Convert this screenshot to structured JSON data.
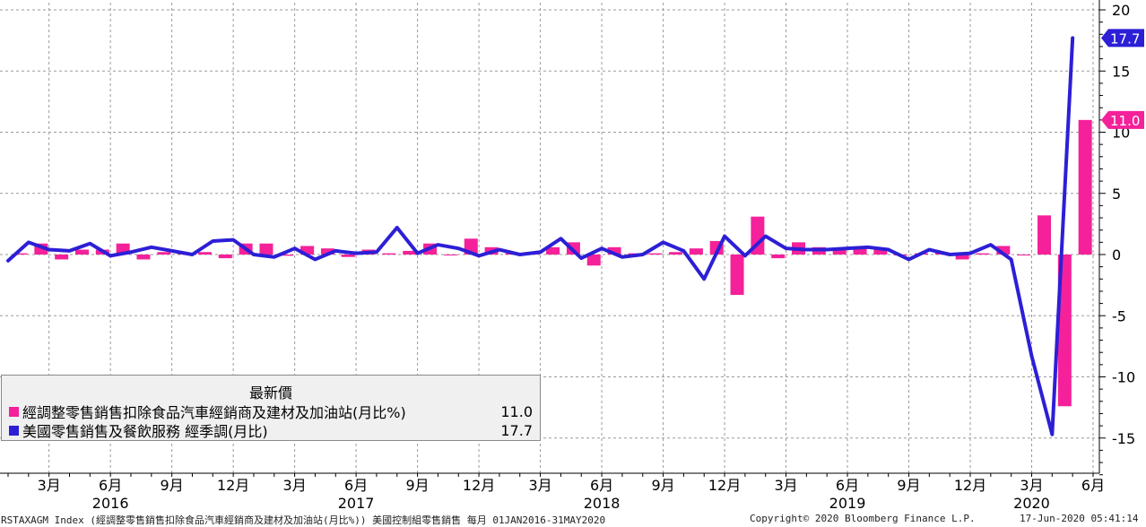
{
  "chart_data": {
    "type": "bar+line",
    "x_months": [
      "2016-01",
      "2016-02",
      "2016-03",
      "2016-04",
      "2016-05",
      "2016-06",
      "2016-07",
      "2016-08",
      "2016-09",
      "2016-10",
      "2016-11",
      "2016-12",
      "2017-01",
      "2017-02",
      "2017-03",
      "2017-04",
      "2017-05",
      "2017-06",
      "2017-07",
      "2017-08",
      "2017-09",
      "2017-10",
      "2017-11",
      "2017-12",
      "2018-01",
      "2018-02",
      "2018-03",
      "2018-04",
      "2018-05",
      "2018-06",
      "2018-07",
      "2018-08",
      "2018-09",
      "2018-10",
      "2018-11",
      "2018-12",
      "2019-01",
      "2019-02",
      "2019-03",
      "2019-04",
      "2019-05",
      "2019-06",
      "2019-07",
      "2019-08",
      "2019-09",
      "2019-10",
      "2019-11",
      "2019-12",
      "2020-01",
      "2020-02",
      "2020-03",
      "2020-04",
      "2020-05"
    ],
    "series": [
      {
        "name": "經調整零售銷售扣除食品汽車經銷商及建材及加油站(月比%)",
        "style": "bar",
        "color": "#f4219a",
        "values": [
          0.1,
          0.9,
          -0.4,
          0.4,
          0.4,
          0.9,
          -0.4,
          0.2,
          0.1,
          0.2,
          -0.3,
          0.9,
          0.9,
          -0.1,
          0.7,
          0.5,
          -0.2,
          0.4,
          0.1,
          0.3,
          0.9,
          0.0,
          1.3,
          0.6,
          0.1,
          0.2,
          0.6,
          1.0,
          -0.9,
          0.6,
          0.1,
          0.1,
          0.2,
          0.5,
          1.1,
          -3.3,
          3.1,
          -0.3,
          1.0,
          0.6,
          0.4,
          0.5,
          0.5,
          0.0,
          0.1,
          0.2,
          -0.4,
          0.1,
          0.7,
          0.0,
          3.2,
          -12.4,
          11.0
        ]
      },
      {
        "name": "美國零售銷售及餐飲服務 經季調(月比)",
        "style": "line",
        "color": "#2c1fd6",
        "values": [
          -0.5,
          1.0,
          0.4,
          0.3,
          0.9,
          -0.1,
          0.2,
          0.6,
          0.3,
          0.0,
          1.1,
          1.2,
          0.0,
          -0.2,
          0.5,
          -0.4,
          0.3,
          0.1,
          0.2,
          2.2,
          0.1,
          0.8,
          0.5,
          -0.1,
          0.4,
          0.0,
          0.2,
          1.3,
          -0.3,
          0.5,
          -0.2,
          0.0,
          1.0,
          0.3,
          -2.0,
          1.5,
          -0.1,
          1.5,
          0.5,
          0.4,
          0.4,
          0.5,
          0.6,
          0.4,
          -0.4,
          0.4,
          0.0,
          0.1,
          0.8,
          -0.4,
          -8.3,
          -14.7,
          17.7
        ]
      }
    ],
    "y_range": [
      -18,
      20
    ],
    "y_ticks": [
      "20",
      "15",
      "10",
      "5",
      "0",
      "-5",
      "-10",
      "-15"
    ],
    "x_month_ticks": [
      {
        "month": "2016-03",
        "label": "3月"
      },
      {
        "month": "2016-06",
        "label": "6月"
      },
      {
        "month": "2016-09",
        "label": "9月"
      },
      {
        "month": "2016-12",
        "label": "12月"
      },
      {
        "month": "2017-03",
        "label": "3月"
      },
      {
        "month": "2017-06",
        "label": "6月"
      },
      {
        "month": "2017-09",
        "label": "9月"
      },
      {
        "month": "2017-12",
        "label": "12月"
      },
      {
        "month": "2018-03",
        "label": "3月"
      },
      {
        "month": "2018-06",
        "label": "6月"
      },
      {
        "month": "2018-09",
        "label": "9月"
      },
      {
        "month": "2018-12",
        "label": "12月"
      },
      {
        "month": "2019-03",
        "label": "3月"
      },
      {
        "month": "2019-06",
        "label": "6月"
      },
      {
        "month": "2019-09",
        "label": "9月"
      },
      {
        "month": "2019-12",
        "label": "12月"
      },
      {
        "month": "2020-03",
        "label": "3月"
      },
      {
        "month": "2020-06",
        "label": "6月"
      }
    ],
    "x_year_ticks": [
      {
        "month": "2016-06",
        "label": "2016"
      },
      {
        "month": "2017-06",
        "label": "2017"
      },
      {
        "month": "2018-06",
        "label": "2018"
      },
      {
        "month": "2019-06",
        "label": "2019"
      },
      {
        "month": "2020-03",
        "label": "2020"
      }
    ],
    "last_value_labels": [
      {
        "series": 1,
        "text": "17.7"
      },
      {
        "series": 0,
        "text": "11.0"
      }
    ],
    "grid": true,
    "y_axis_side": "right"
  },
  "legend": {
    "title": "最新價",
    "items": [
      {
        "label": "經調整零售銷售扣除食品汽車經銷商及建材及加油站(月比%)",
        "value": "11.0",
        "color": "#f4219a"
      },
      {
        "label": "美國零售銷售及餐飲服務 經季調(月比)",
        "value": "17.7",
        "color": "#2c1fd6"
      }
    ]
  },
  "footer": {
    "source": "RSTAXAGM Index (經調整零售銷售扣除食品汽車經銷商及建材及加油站(月比%)) 美國控制組零售銷售  每月 01JAN2016-31MAY2020",
    "copyright": "Copyright© 2020 Bloomberg Finance L.P.",
    "timestamp": "17-Jun-2020 05:41:14"
  }
}
